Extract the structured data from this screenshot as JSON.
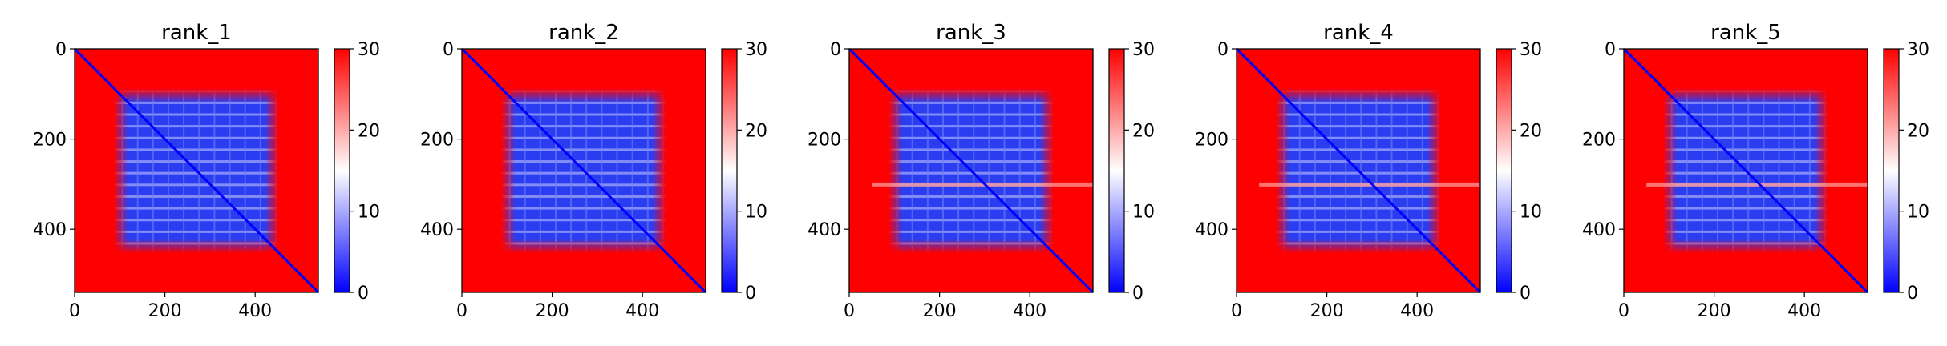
{
  "figure": {
    "background": "#ffffff",
    "colormap": "bwr",
    "colormap_stops": [
      "#0000ff",
      "#ffffff",
      "#ff0000"
    ]
  },
  "chart_data": [
    {
      "type": "heatmap",
      "title": "rank_1",
      "xlabel": "",
      "ylabel": "",
      "xlim": [
        0,
        540
      ],
      "ylim": [
        540,
        0
      ],
      "xticks": [
        0,
        200,
        400
      ],
      "yticks": [
        0,
        200,
        400
      ],
      "colorbar": {
        "range": [
          0,
          30
        ],
        "ticks": [
          0,
          10,
          20,
          30
        ]
      },
      "matrix_size": 540,
      "edge_high_region": 50,
      "low_band_rows": [],
      "description_values": {
        "interior_typical": 5,
        "edge_typical": 30,
        "diagonal": 0
      }
    },
    {
      "type": "heatmap",
      "title": "rank_2",
      "xlabel": "",
      "ylabel": "",
      "xlim": [
        0,
        540
      ],
      "ylim": [
        540,
        0
      ],
      "xticks": [
        0,
        200,
        400
      ],
      "yticks": [
        0,
        200,
        400
      ],
      "colorbar": {
        "range": [
          0,
          30
        ],
        "ticks": [
          0,
          10,
          20,
          30
        ]
      },
      "matrix_size": 540,
      "edge_high_region": 50,
      "low_band_rows": [],
      "description_values": {
        "interior_typical": 5,
        "edge_typical": 30,
        "diagonal": 0
      }
    },
    {
      "type": "heatmap",
      "title": "rank_3",
      "xlabel": "",
      "ylabel": "",
      "xlim": [
        0,
        540
      ],
      "ylim": [
        540,
        0
      ],
      "xticks": [
        0,
        200,
        400
      ],
      "yticks": [
        0,
        200,
        400
      ],
      "colorbar": {
        "range": [
          0,
          30
        ],
        "ticks": [
          0,
          10,
          20,
          30
        ]
      },
      "matrix_size": 540,
      "edge_high_region": 50,
      "low_band_rows": [
        300
      ],
      "description_values": {
        "interior_typical": 5,
        "edge_typical": 30,
        "diagonal": 0
      }
    },
    {
      "type": "heatmap",
      "title": "rank_4",
      "xlabel": "",
      "ylabel": "",
      "xlim": [
        0,
        540
      ],
      "ylim": [
        540,
        0
      ],
      "xticks": [
        0,
        200,
        400
      ],
      "yticks": [
        0,
        200,
        400
      ],
      "colorbar": {
        "range": [
          0,
          30
        ],
        "ticks": [
          0,
          10,
          20,
          30
        ]
      },
      "matrix_size": 540,
      "edge_high_region": 50,
      "low_band_rows": [
        300
      ],
      "description_values": {
        "interior_typical": 5,
        "edge_typical": 30,
        "diagonal": 0
      }
    },
    {
      "type": "heatmap",
      "title": "rank_5",
      "xlabel": "",
      "ylabel": "",
      "xlim": [
        0,
        540
      ],
      "ylim": [
        540,
        0
      ],
      "xticks": [
        0,
        200,
        400
      ],
      "yticks": [
        0,
        200,
        400
      ],
      "colorbar": {
        "range": [
          0,
          30
        ],
        "ticks": [
          0,
          10,
          20,
          30
        ]
      },
      "matrix_size": 540,
      "edge_high_region": 50,
      "low_band_rows": [
        300
      ],
      "description_values": {
        "interior_typical": 5,
        "edge_typical": 30,
        "diagonal": 0
      }
    }
  ]
}
